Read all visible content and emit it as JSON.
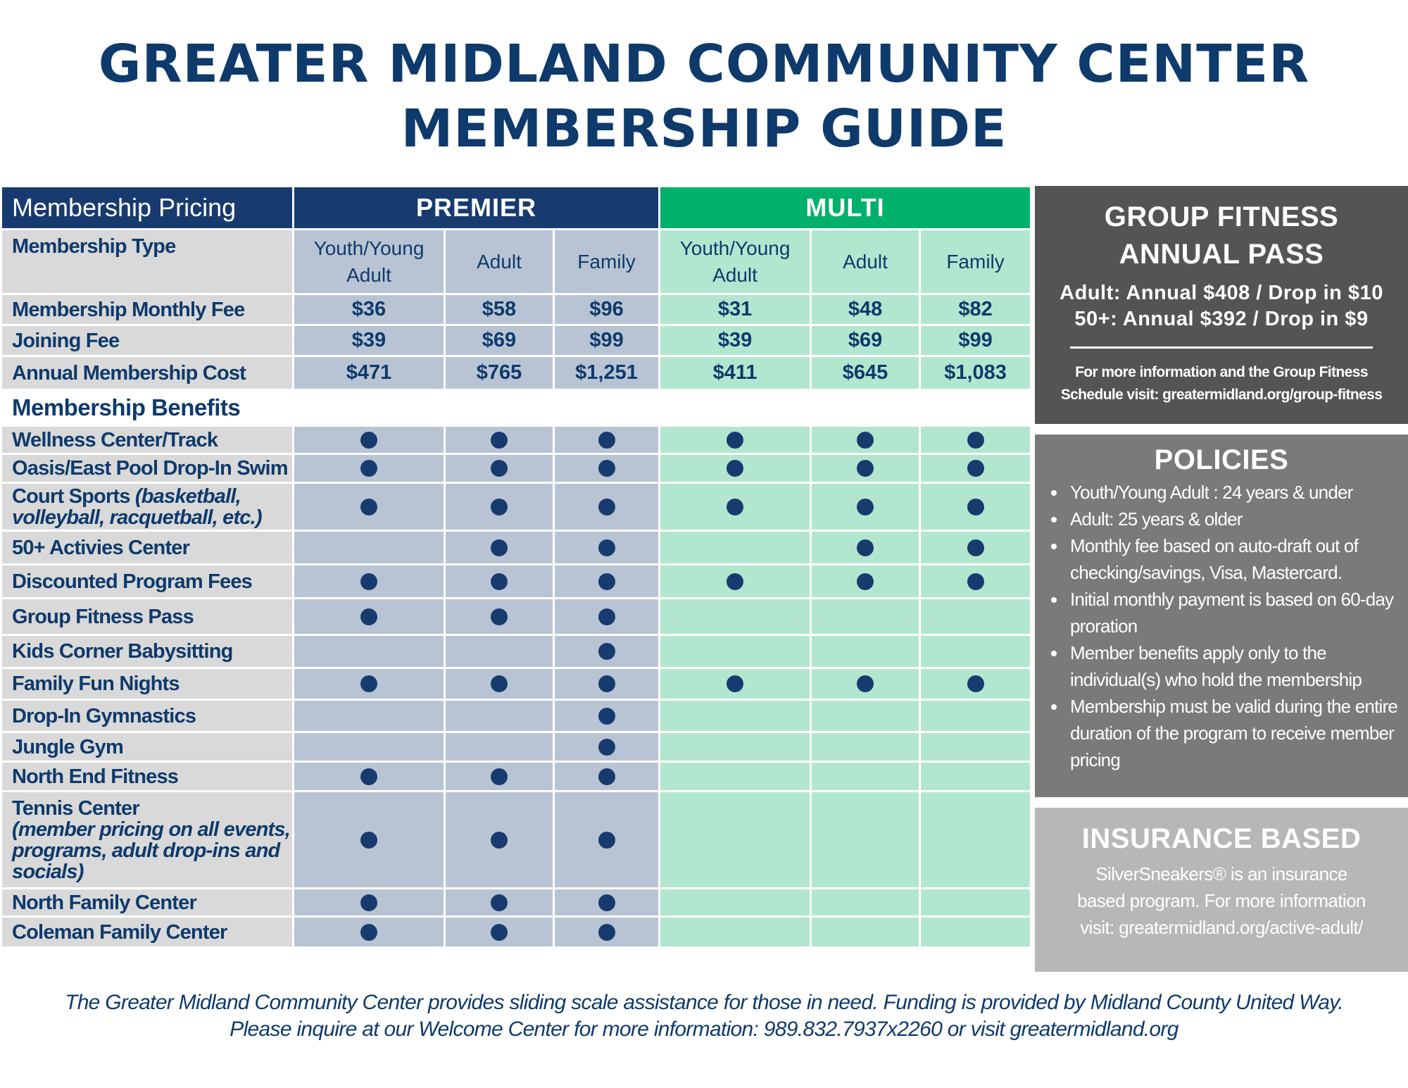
{
  "title": {
    "line1": "GREATER MIDLAND COMMUNITY CENTER",
    "line2": "MEMBERSHIP GUIDE"
  },
  "table": {
    "pricing_header": "Membership Pricing",
    "premier_header": "PREMIER",
    "multi_header": "MULTI",
    "type_label": "Membership Type",
    "columns": [
      "Youth/Young Adult",
      "Adult",
      "Family",
      "Youth/Young Adult",
      "Adult",
      "Family"
    ],
    "pricing_rows": [
      {
        "label": "Membership Monthly Fee",
        "values": [
          "$36",
          "$58",
          "$96",
          "$31",
          "$48",
          "$82"
        ]
      },
      {
        "label": "Joining Fee",
        "values": [
          "$39",
          "$69",
          "$99",
          "$39",
          "$69",
          "$99"
        ]
      },
      {
        "label": "Annual Membership Cost",
        "values": [
          "$471",
          "$765",
          "$1,251",
          "$411",
          "$645",
          "$1,083"
        ]
      }
    ],
    "benefits_header": "Membership Benefits",
    "benefits": [
      {
        "label": "Wellness Center/Track",
        "included": [
          true,
          true,
          true,
          true,
          true,
          true
        ]
      },
      {
        "label": "Oasis/East Pool Drop-In Swim",
        "included": [
          true,
          true,
          true,
          true,
          true,
          true
        ]
      },
      {
        "label": "Court Sports",
        "note": "(basketball, volleyball, racquetball, etc.)",
        "included": [
          true,
          true,
          true,
          true,
          true,
          true
        ]
      },
      {
        "label": "50+ Activies Center",
        "included": [
          false,
          true,
          true,
          false,
          true,
          true
        ]
      },
      {
        "label": "Discounted Program Fees",
        "included": [
          true,
          true,
          true,
          true,
          true,
          true
        ]
      },
      {
        "label": "Group Fitness Pass",
        "included": [
          true,
          true,
          true,
          false,
          false,
          false
        ]
      },
      {
        "label": "Kids Corner Babysitting",
        "included": [
          false,
          false,
          true,
          false,
          false,
          false
        ]
      },
      {
        "label": "Family Fun Nights",
        "included": [
          true,
          true,
          true,
          true,
          true,
          true
        ]
      },
      {
        "label": "Drop-In Gymnastics",
        "included": [
          false,
          false,
          true,
          false,
          false,
          false
        ]
      },
      {
        "label": "Jungle Gym",
        "included": [
          false,
          false,
          true,
          false,
          false,
          false
        ]
      },
      {
        "label": "North End Fitness",
        "included": [
          true,
          true,
          true,
          false,
          false,
          false
        ]
      },
      {
        "label": "Tennis Center",
        "note": "(member pricing on all events, programs, adult drop-ins and socials)",
        "included": [
          true,
          true,
          true,
          false,
          false,
          false
        ]
      },
      {
        "label": "North Family Center",
        "included": [
          true,
          true,
          true,
          false,
          false,
          false
        ]
      },
      {
        "label": "Coleman Family Center",
        "included": [
          true,
          true,
          true,
          false,
          false,
          false
        ]
      }
    ]
  },
  "fitness": {
    "heading1": "GROUP FITNESS",
    "heading2": "ANNUAL PASS",
    "price1": "Adult: Annual $408 / Drop in $10",
    "price2": "50+: Annual $392 / Drop in $9",
    "info1": "For more information and the Group Fitness",
    "info2": "Schedule visit: greatermidland.org/group-fitness"
  },
  "policies": {
    "heading": "POLICIES",
    "items": [
      "Youth/Young Adult :  24 years & under",
      "Adult: 25 years & older",
      "Monthly fee based on auto-draft out of checking/savings, Visa, Mastercard.",
      "Initial monthly payment is based on 60-day proration",
      "Member benefits apply only to the individual(s) who hold the membership",
      "Membership must be valid during the entire duration of the program to receive member pricing"
    ]
  },
  "insurance": {
    "heading": "INSURANCE  BASED",
    "line1": "SilverSneakers® is an insurance",
    "line2": "based program. For more information",
    "line3": "visit: greatermidland.org/active-adult/"
  },
  "footer": {
    "line1": "The Greater Midland Community Center provides sliding scale assistance for those in need. Funding is provided by Midland County United Way.",
    "line2": "Please inquire at our Welcome Center for more information: 989.832.7937x2260 or visit greatermidland.org"
  }
}
